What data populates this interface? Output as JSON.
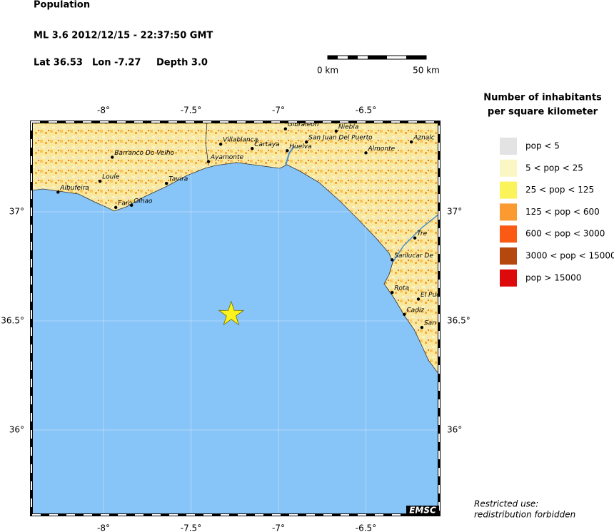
{
  "header": {
    "title": "Population",
    "event": "ML 3.6  2012/12/15 - 22:37:50 GMT",
    "lat": "Lat 36.53",
    "lon": "Lon  -7.27",
    "depth": "Depth  3.0"
  },
  "scale_bar": {
    "start": "0 km",
    "end": "50 km"
  },
  "map": {
    "lon_ticks": [
      {
        "value": -8,
        "label": "-8°"
      },
      {
        "value": -7.5,
        "label": "-7.5°"
      },
      {
        "value": -7,
        "label": "-7°"
      },
      {
        "value": -6.5,
        "label": "-6.5°"
      }
    ],
    "lat_ticks": [
      {
        "value": 37,
        "label": "37°"
      },
      {
        "value": 36.5,
        "label": "36.5°"
      },
      {
        "value": 36,
        "label": "36°"
      }
    ],
    "epicenter": {
      "lon": -7.27,
      "lat": 36.53
    },
    "cities": [
      {
        "name": "Barranco Do Velho",
        "lon": -7.95,
        "lat": 37.25
      },
      {
        "name": "Loule",
        "lon": -8.02,
        "lat": 37.14
      },
      {
        "name": "Albufeira",
        "lon": -8.26,
        "lat": 37.09
      },
      {
        "name": "Tavira",
        "lon": -7.64,
        "lat": 37.13
      },
      {
        "name": "Faro",
        "lon": -7.93,
        "lat": 37.02
      },
      {
        "name": "Olhao",
        "lon": -7.84,
        "lat": 37.03
      },
      {
        "name": "Villablanca",
        "lon": -7.33,
        "lat": 37.31
      },
      {
        "name": "Cartaya",
        "lon": -7.15,
        "lat": 37.29
      },
      {
        "name": "Ayamonte",
        "lon": -7.4,
        "lat": 37.23
      },
      {
        "name": "Huelva",
        "lon": -6.95,
        "lat": 37.28
      },
      {
        "name": "San Juan Del Puerto",
        "lon": -6.84,
        "lat": 37.32
      },
      {
        "name": "Gibraleon",
        "lon": -6.96,
        "lat": 37.38
      },
      {
        "name": "Niebla",
        "lon": -6.67,
        "lat": 37.37
      },
      {
        "name": "Almonte",
        "lon": -6.5,
        "lat": 37.27
      },
      {
        "name": "Aznalc",
        "lon": -6.24,
        "lat": 37.32
      },
      {
        "name": "Tre",
        "lon": -6.22,
        "lat": 36.88
      },
      {
        "name": "Sanlucar De",
        "lon": -6.35,
        "lat": 36.78
      },
      {
        "name": "Rota",
        "lon": -6.35,
        "lat": 36.63
      },
      {
        "name": "El Pue",
        "lon": -6.2,
        "lat": 36.6
      },
      {
        "name": "Cadiz",
        "lon": -6.28,
        "lat": 36.53
      },
      {
        "name": "San",
        "lon": -6.18,
        "lat": 36.47
      }
    ]
  },
  "legend": {
    "title_line1": "Number of inhabitants",
    "title_line2": "per square kilometer",
    "items": [
      {
        "label": "pop < 5",
        "color": "#e3e3e3"
      },
      {
        "label": "5 < pop < 25",
        "color": "#fbf7c4"
      },
      {
        "label": "25 < pop < 125",
        "color": "#fbf35a"
      },
      {
        "label": "125 < pop < 600",
        "color": "#fb9a30"
      },
      {
        "label": "600 < pop < 3000",
        "color": "#fb5a14"
      },
      {
        "label": "3000 < pop < 15000",
        "color": "#b4480f"
      },
      {
        "label": "pop > 15000",
        "color": "#dc0a0a"
      }
    ]
  },
  "logo": "EMSC",
  "note": {
    "line1": "Restricted use:",
    "line2": "redistribution forbidden"
  }
}
